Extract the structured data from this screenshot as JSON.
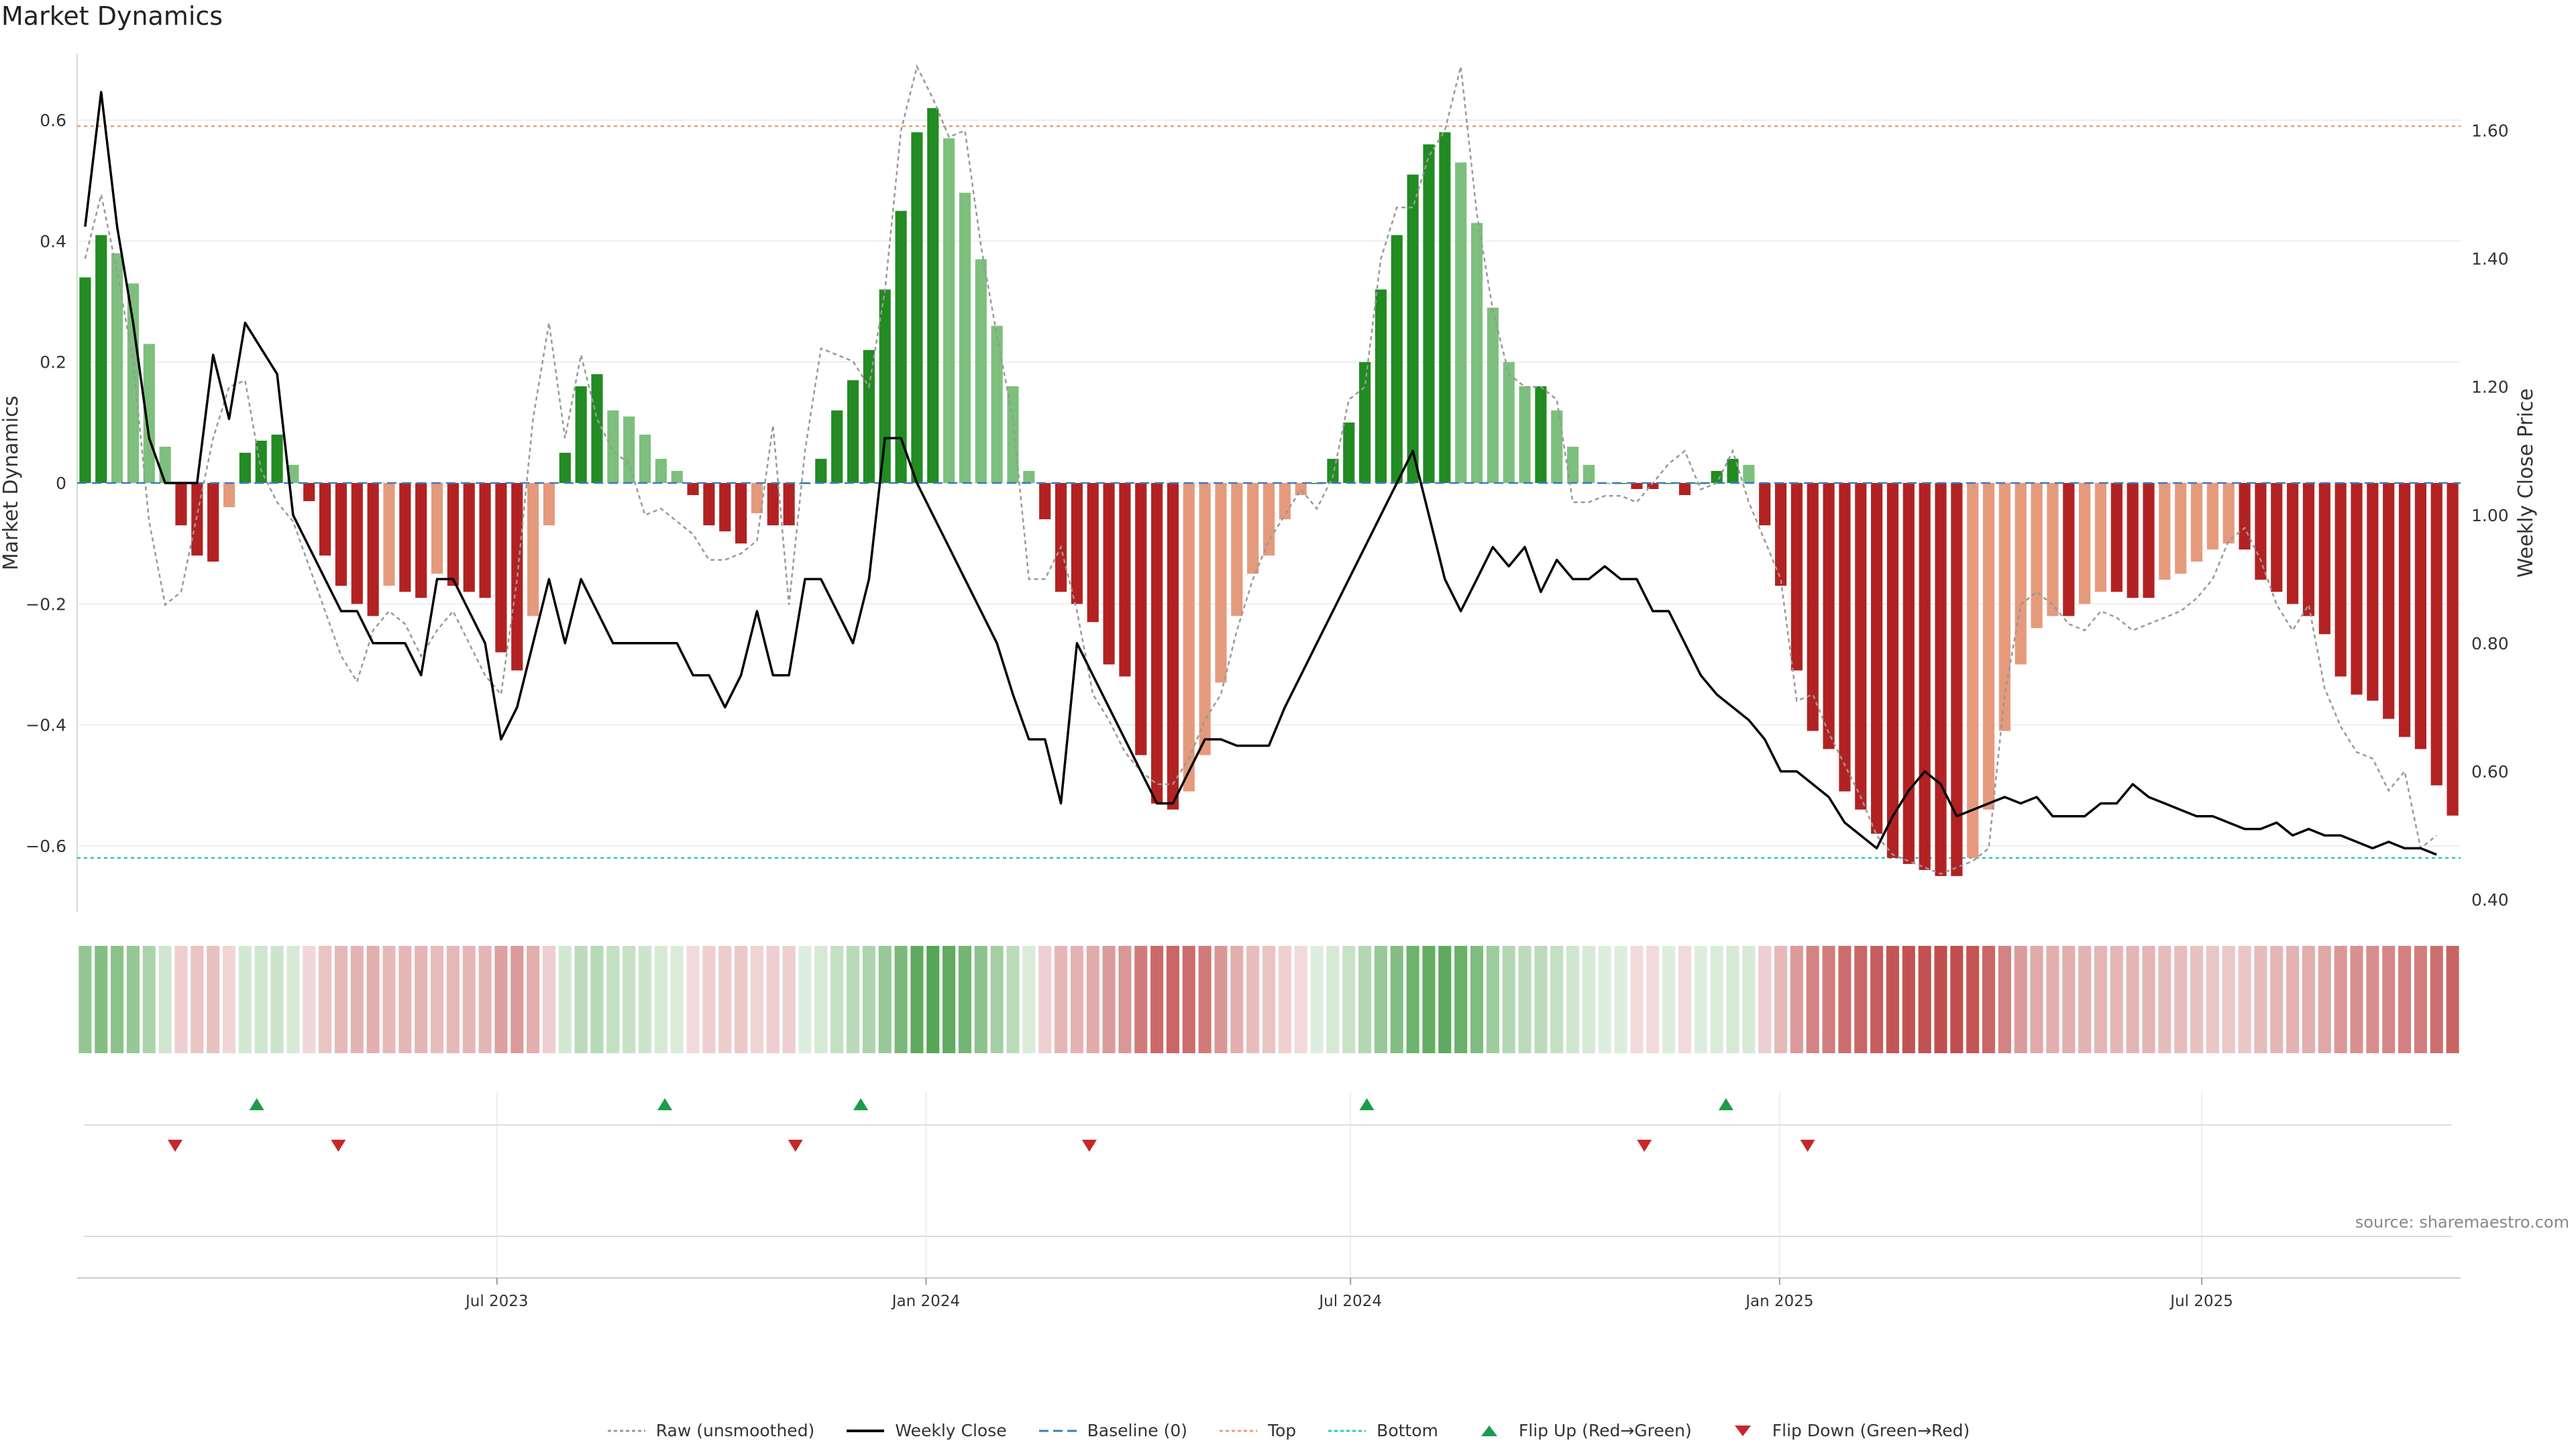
{
  "title": "Market Dynamics",
  "source": "source: sharemaestro.com",
  "colors": {
    "green_strong": "#228B22",
    "green_light": "#7DBF7D",
    "red_strong": "#B22222",
    "red_light": "#E59A7C",
    "price_line": "#000000",
    "raw_line": "#999999",
    "baseline": "#3A7BBF",
    "top": "#E8A070",
    "bottom": "#2EC4C4",
    "flip_up": "#1E9A4A",
    "flip_down": "#C62828"
  },
  "legend": [
    {
      "label": "Raw (unsmoothed)",
      "style": "dotted",
      "color": "#999999"
    },
    {
      "label": "Weekly Close",
      "style": "solid",
      "color": "#000000"
    },
    {
      "label": "Baseline (0)",
      "style": "dashed",
      "color": "#3A7BBF"
    },
    {
      "label": "Top",
      "style": "dotted",
      "color": "#E8A070"
    },
    {
      "label": "Bottom",
      "style": "dotted",
      "color": "#2EC4C4"
    },
    {
      "label": "Flip Up (Red→Green)",
      "style": "triangle-up",
      "color": "#1E9A4A"
    },
    {
      "label": "Flip Down (Green→Red)",
      "style": "triangle-down",
      "color": "#C62828"
    }
  ],
  "chart_data": {
    "type": "bar",
    "ylabel": "Market Dynamics",
    "y2label": "Weekly Close Price",
    "ylim": [
      -0.71,
      0.71
    ],
    "y2lim": [
      0.38,
      1.72
    ],
    "yticks": [
      0.6,
      0.4,
      0.2,
      0,
      -0.2,
      -0.4,
      -0.6
    ],
    "ytick_labels": [
      "0.6",
      "0.4",
      "0.2",
      "0",
      "−0.2",
      "−0.4",
      "−0.6"
    ],
    "y2ticks": [
      1.6,
      1.4,
      1.2,
      1.0,
      0.8,
      0.6,
      0.4
    ],
    "y2tick_labels": [
      "1.60",
      "1.40",
      "1.20",
      "1.00",
      "0.80",
      "0.60",
      "0.40"
    ],
    "top_level": 0.59,
    "bottom_level": -0.62,
    "x_start": "2023-01-02",
    "x_end": "2025-10-20",
    "xtick_labels": [
      "Jul 2023",
      "Jan 2024",
      "Jul 2024",
      "Jan 2025",
      "Jul 2025"
    ],
    "xtick_dates": [
      "2023-07-01",
      "2024-01-01",
      "2024-07-01",
      "2025-01-01",
      "2025-07-01"
    ],
    "bars": [
      0.34,
      0.41,
      0.38,
      0.33,
      0.23,
      0.06,
      -0.07,
      -0.12,
      -0.13,
      -0.04,
      0.05,
      0.07,
      0.08,
      0.03,
      -0.03,
      -0.12,
      -0.17,
      -0.2,
      -0.22,
      -0.17,
      -0.18,
      -0.19,
      -0.15,
      -0.17,
      -0.18,
      -0.19,
      -0.28,
      -0.31,
      -0.22,
      -0.07,
      0.05,
      0.16,
      0.18,
      0.12,
      0.11,
      0.08,
      0.04,
      0.02,
      -0.02,
      -0.07,
      -0.08,
      -0.1,
      -0.05,
      -0.07,
      -0.07,
      0.0,
      0.04,
      0.12,
      0.17,
      0.22,
      0.32,
      0.45,
      0.58,
      0.62,
      0.57,
      0.48,
      0.37,
      0.26,
      0.16,
      0.02,
      -0.06,
      -0.18,
      -0.2,
      -0.23,
      -0.3,
      -0.32,
      -0.45,
      -0.53,
      -0.54,
      -0.51,
      -0.45,
      -0.33,
      -0.22,
      -0.15,
      -0.12,
      -0.06,
      -0.02,
      0.0,
      0.04,
      0.1,
      0.2,
      0.32,
      0.41,
      0.51,
      0.56,
      0.58,
      0.53,
      0.43,
      0.29,
      0.2,
      0.16,
      0.16,
      0.12,
      0.06,
      0.03,
      0.0,
      0.0,
      -0.01,
      -0.01,
      0.0,
      -0.02,
      0.0,
      0.02,
      0.04,
      0.03,
      -0.07,
      -0.17,
      -0.31,
      -0.41,
      -0.44,
      -0.51,
      -0.54,
      -0.58,
      -0.62,
      -0.63,
      -0.64,
      -0.65,
      -0.65,
      -0.62,
      -0.54,
      -0.41,
      -0.3,
      -0.24,
      -0.22,
      -0.22,
      -0.2,
      -0.18,
      -0.18,
      -0.19,
      -0.19,
      -0.16,
      -0.15,
      -0.13,
      -0.11,
      -0.1,
      -0.11,
      -0.16,
      -0.18,
      -0.2,
      -0.22,
      -0.25,
      -0.32,
      -0.35,
      -0.36,
      -0.39,
      -0.42,
      -0.44,
      -0.5,
      -0.55
    ],
    "close": [
      1.45,
      1.66,
      1.45,
      1.3,
      1.12,
      1.05,
      1.05,
      1.05,
      1.25,
      1.15,
      1.3,
      1.26,
      1.22,
      1.0,
      0.95,
      0.9,
      0.85,
      0.85,
      0.8,
      0.8,
      0.8,
      0.75,
      0.9,
      0.9,
      0.85,
      0.8,
      0.65,
      0.7,
      0.8,
      0.9,
      0.8,
      0.9,
      0.85,
      0.8,
      0.8,
      0.8,
      0.8,
      0.8,
      0.75,
      0.75,
      0.7,
      0.75,
      0.85,
      0.75,
      0.75,
      0.9,
      0.9,
      0.85,
      0.8,
      0.9,
      1.12,
      1.12,
      1.05,
      1.0,
      0.95,
      0.9,
      0.85,
      0.8,
      0.72,
      0.65,
      0.65,
      0.55,
      0.8,
      0.75,
      0.7,
      0.65,
      0.6,
      0.55,
      0.55,
      0.6,
      0.65,
      0.65,
      0.64,
      0.64,
      0.64,
      0.7,
      0.75,
      0.8,
      0.85,
      0.9,
      0.95,
      1.0,
      1.05,
      1.1,
      1.0,
      0.9,
      0.85,
      0.9,
      0.95,
      0.92,
      0.95,
      0.88,
      0.93,
      0.9,
      0.9,
      0.92,
      0.9,
      0.9,
      0.85,
      0.85,
      0.8,
      0.75,
      0.72,
      0.7,
      0.68,
      0.65,
      0.6,
      0.6,
      0.58,
      0.56,
      0.52,
      0.5,
      0.48,
      0.53,
      0.57,
      0.6,
      0.58,
      0.53,
      0.54,
      0.55,
      0.56,
      0.55,
      0.56,
      0.53,
      0.53,
      0.53,
      0.55,
      0.55,
      0.58,
      0.56,
      0.55,
      0.54,
      0.53,
      0.53,
      0.52,
      0.51,
      0.51,
      0.52,
      0.5,
      0.51,
      0.5,
      0.5,
      0.49,
      0.48,
      0.49,
      0.48,
      0.48,
      0.47
    ],
    "raw": [
      1.4,
      1.5,
      1.38,
      1.24,
      0.99,
      0.86,
      0.88,
      1.0,
      1.12,
      1.2,
      1.21,
      1.07,
      1.02,
      0.99,
      0.92,
      0.85,
      0.78,
      0.74,
      0.82,
      0.85,
      0.83,
      0.78,
      0.82,
      0.85,
      0.8,
      0.75,
      0.72,
      0.9,
      1.15,
      1.3,
      1.12,
      1.25,
      1.15,
      1.1,
      1.08,
      1.0,
      1.01,
      0.99,
      0.97,
      0.93,
      0.93,
      0.94,
      0.96,
      1.14,
      0.86,
      1.1,
      1.26,
      1.25,
      1.24,
      1.2,
      1.35,
      1.6,
      1.7,
      1.65,
      1.59,
      1.6,
      1.42,
      1.28,
      1.15,
      0.9,
      0.9,
      0.95,
      0.85,
      0.72,
      0.68,
      0.63,
      0.6,
      0.58,
      0.58,
      0.62,
      0.68,
      0.72,
      0.82,
      0.9,
      0.96,
      1.0,
      1.04,
      1.01,
      1.06,
      1.18,
      1.2,
      1.4,
      1.48,
      1.48,
      1.56,
      1.6,
      1.7,
      1.47,
      1.32,
      1.22,
      1.2,
      1.2,
      1.18,
      1.02,
      1.02,
      1.03,
      1.03,
      1.02,
      1.05,
      1.08,
      1.1,
      1.04,
      1.05,
      1.1,
      1.02,
      0.96,
      0.9,
      0.71,
      0.72,
      0.66,
      0.61,
      0.56,
      0.5,
      0.47,
      0.46,
      0.45,
      0.44,
      0.45,
      0.46,
      0.48,
      0.72,
      0.86,
      0.88,
      0.86,
      0.83,
      0.82,
      0.85,
      0.84,
      0.82,
      0.83,
      0.84,
      0.85,
      0.87,
      0.9,
      0.96,
      0.98,
      0.93,
      0.86,
      0.82,
      0.86,
      0.73,
      0.67,
      0.63,
      0.62,
      0.57,
      0.6,
      0.48,
      0.5
    ],
    "flip_up_dates": [
      "2023-03-20",
      "2023-09-11",
      "2023-12-04",
      "2024-07-08",
      "2024-12-09"
    ],
    "flip_down_dates": [
      "2023-02-13",
      "2023-04-24",
      "2023-11-06",
      "2024-03-11",
      "2024-11-04",
      "2025-01-13"
    ]
  }
}
